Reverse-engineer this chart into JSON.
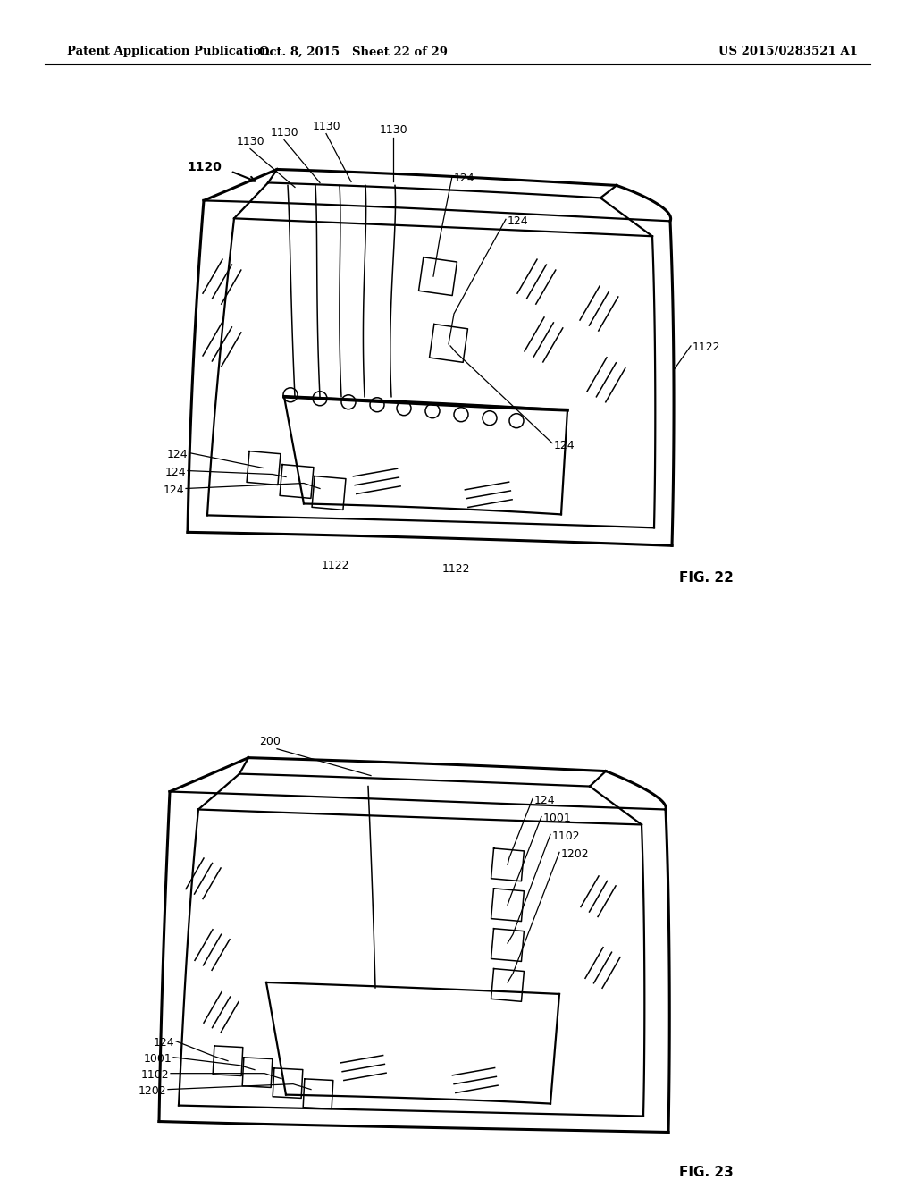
{
  "header_left": "Patent Application Publication",
  "header_mid": "Oct. 8, 2015   Sheet 22 of 29",
  "header_right": "US 2015/0283521 A1",
  "fig22_label": "FIG. 22",
  "fig23_label": "FIG. 23",
  "bg_color": "#ffffff",
  "line_color": "#000000",
  "lw_thick": 2.2,
  "lw_main": 1.6,
  "lw_thin": 1.1,
  "lw_hair": 0.9
}
